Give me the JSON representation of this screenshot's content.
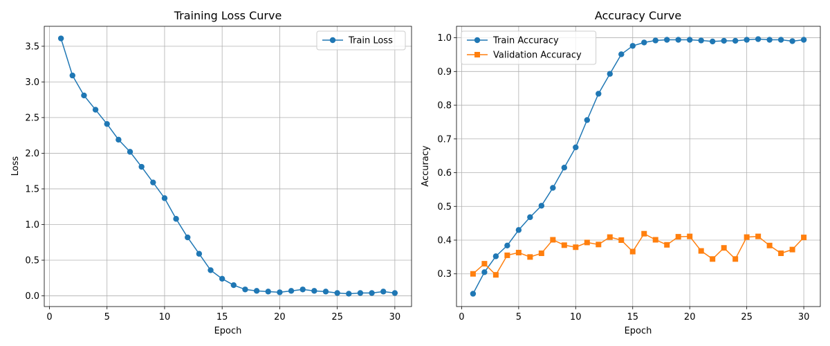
{
  "chart_data": [
    {
      "type": "line",
      "title": "Training Loss Curve",
      "xlabel": "Epoch",
      "ylabel": "Loss",
      "xlim": [
        -0.45,
        31.45
      ],
      "ylim": [
        -0.15,
        3.78
      ],
      "xticks": [
        0,
        5,
        10,
        15,
        20,
        25,
        30
      ],
      "yticks": [
        0.0,
        0.5,
        1.0,
        1.5,
        2.0,
        2.5,
        3.0,
        3.5
      ],
      "ytick_decimals": 1,
      "grid": true,
      "legend_position": "top-right",
      "x": [
        1,
        2,
        3,
        4,
        5,
        6,
        7,
        8,
        9,
        10,
        11,
        12,
        13,
        14,
        15,
        16,
        17,
        18,
        19,
        20,
        21,
        22,
        23,
        24,
        25,
        26,
        27,
        28,
        29,
        30
      ],
      "series": [
        {
          "name": "Train Loss",
          "color": "#1f77b4",
          "marker": "circle",
          "values": [
            3.61,
            3.09,
            2.81,
            2.61,
            2.41,
            2.19,
            2.02,
            1.81,
            1.59,
            1.37,
            1.08,
            0.82,
            0.59,
            0.36,
            0.24,
            0.15,
            0.09,
            0.07,
            0.06,
            0.05,
            0.07,
            0.09,
            0.07,
            0.06,
            0.04,
            0.03,
            0.04,
            0.04,
            0.06,
            0.04
          ]
        }
      ]
    },
    {
      "type": "line",
      "title": "Accuracy Curve",
      "xlabel": "Epoch",
      "ylabel": "Accuracy",
      "xlim": [
        -0.45,
        31.45
      ],
      "ylim": [
        0.203,
        1.034
      ],
      "xticks": [
        0,
        5,
        10,
        15,
        20,
        25,
        30
      ],
      "yticks": [
        0.3,
        0.4,
        0.5,
        0.6,
        0.7,
        0.8,
        0.9,
        1.0
      ],
      "ytick_decimals": 1,
      "grid": true,
      "legend_position": "top-left",
      "x": [
        1,
        2,
        3,
        4,
        5,
        6,
        7,
        8,
        9,
        10,
        11,
        12,
        13,
        14,
        15,
        16,
        17,
        18,
        19,
        20,
        21,
        22,
        23,
        24,
        25,
        26,
        27,
        28,
        29,
        30
      ],
      "series": [
        {
          "name": "Train Accuracy",
          "color": "#1f77b4",
          "marker": "circle",
          "values": [
            0.241,
            0.305,
            0.352,
            0.384,
            0.43,
            0.468,
            0.502,
            0.555,
            0.615,
            0.675,
            0.756,
            0.834,
            0.893,
            0.951,
            0.976,
            0.986,
            0.992,
            0.994,
            0.994,
            0.994,
            0.992,
            0.989,
            0.991,
            0.991,
            0.994,
            0.996,
            0.994,
            0.994,
            0.99,
            0.994
          ]
        },
        {
          "name": "Validation Accuracy",
          "color": "#ff7f0e",
          "marker": "square",
          "values": [
            0.3,
            0.33,
            0.297,
            0.355,
            0.363,
            0.35,
            0.361,
            0.401,
            0.385,
            0.379,
            0.393,
            0.387,
            0.409,
            0.4,
            0.366,
            0.419,
            0.401,
            0.386,
            0.41,
            0.411,
            0.368,
            0.344,
            0.377,
            0.344,
            0.409,
            0.411,
            0.384,
            0.361,
            0.372,
            0.408
          ]
        }
      ]
    }
  ]
}
